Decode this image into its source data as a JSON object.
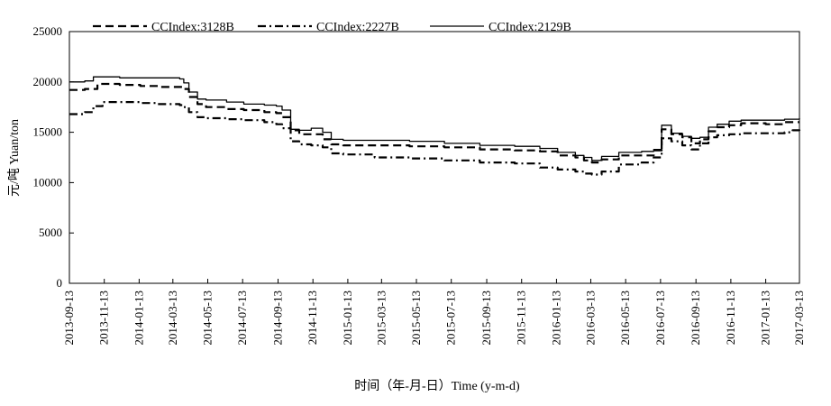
{
  "chart_data": {
    "type": "line",
    "title": "",
    "xlabel": "时间（年-月-日）Time (y-m-d)",
    "ylabel": "元/吨 Yuan/ton",
    "ylim": [
      0,
      25000
    ],
    "yticks": [
      0,
      5000,
      10000,
      15000,
      20000,
      25000
    ],
    "xlim": [
      "2013-09-13",
      "2017-03-13"
    ],
    "xtick_labels": [
      "2013-09-13",
      "2013-11-13",
      "2014-01-13",
      "2014-03-13",
      "2014-05-13",
      "2014-07-13",
      "2014-09-13",
      "2014-11-13",
      "2015-01-13",
      "2015-03-13",
      "2015-05-13",
      "2015-07-13",
      "2015-09-13",
      "2015-11-13",
      "2016-01-13",
      "2016-03-13",
      "2016-05-13",
      "2016-07-13",
      "2016-09-13",
      "2016-11-13",
      "2017-01-13",
      "2017-03-13"
    ],
    "grid": false,
    "legend_position": "top",
    "series": [
      {
        "name": "CCIndex:3128B",
        "style": "dashed",
        "x": [
          "2013-09-13",
          "2013-10-10",
          "2013-11-01",
          "2013-12-10",
          "2014-01-15",
          "2014-02-15",
          "2014-03-25",
          "2014-04-01",
          "2014-04-10",
          "2014-04-25",
          "2014-05-10",
          "2014-06-15",
          "2014-07-15",
          "2014-08-20",
          "2014-09-10",
          "2014-09-20",
          "2014-10-05",
          "2014-10-20",
          "2014-11-10",
          "2014-11-30",
          "2014-12-15",
          "2015-01-05",
          "2015-03-01",
          "2015-05-01",
          "2015-07-01",
          "2015-09-01",
          "2015-11-01",
          "2015-12-15",
          "2016-01-15",
          "2016-02-15",
          "2016-03-01",
          "2016-03-15",
          "2016-04-01",
          "2016-05-01",
          "2016-06-10",
          "2016-07-01",
          "2016-07-15",
          "2016-08-01",
          "2016-08-20",
          "2016-09-05",
          "2016-09-20",
          "2016-10-05",
          "2016-10-20",
          "2016-11-10",
          "2016-12-01",
          "2017-01-13",
          "2017-02-15",
          "2017-03-13"
        ],
        "y": [
          19200,
          19300,
          19800,
          19700,
          19600,
          19500,
          19500,
          19300,
          18500,
          17800,
          17500,
          17300,
          17200,
          17000,
          16900,
          16500,
          15200,
          14800,
          14800,
          14300,
          13800,
          13700,
          13700,
          13600,
          13500,
          13300,
          13200,
          13100,
          12700,
          12500,
          12200,
          12000,
          12300,
          12700,
          12700,
          13200,
          15300,
          14800,
          14500,
          13900,
          14300,
          15100,
          15500,
          15700,
          15900,
          15800,
          16000,
          16000
        ]
      },
      {
        "name": "CCIndex:2227B",
        "style": "dashdot",
        "x": [
          "2013-09-13",
          "2013-10-10",
          "2013-10-25",
          "2013-11-10",
          "2013-12-10",
          "2014-01-15",
          "2014-02-15",
          "2014-03-25",
          "2014-04-01",
          "2014-04-10",
          "2014-04-25",
          "2014-05-10",
          "2014-06-15",
          "2014-07-15",
          "2014-08-20",
          "2014-09-10",
          "2014-09-20",
          "2014-10-05",
          "2014-10-20",
          "2014-11-10",
          "2014-11-30",
          "2014-12-15",
          "2015-01-05",
          "2015-03-01",
          "2015-05-01",
          "2015-07-01",
          "2015-09-01",
          "2015-11-01",
          "2015-12-15",
          "2016-01-15",
          "2016-02-15",
          "2016-03-01",
          "2016-03-15",
          "2016-04-01",
          "2016-05-01",
          "2016-06-10",
          "2016-07-01",
          "2016-07-15",
          "2016-08-01",
          "2016-08-20",
          "2016-09-05",
          "2016-09-20",
          "2016-10-05",
          "2016-10-20",
          "2016-11-10",
          "2016-12-01",
          "2017-01-13",
          "2017-02-15",
          "2017-03-01",
          "2017-03-13"
        ],
        "y": [
          16800,
          17000,
          17600,
          18000,
          18000,
          17900,
          17800,
          17700,
          17500,
          17000,
          16500,
          16400,
          16300,
          16200,
          16000,
          15800,
          15400,
          14100,
          13800,
          13700,
          13500,
          12900,
          12800,
          12500,
          12400,
          12200,
          12000,
          11900,
          11500,
          11300,
          11100,
          10900,
          10800,
          11100,
          11800,
          12000,
          12500,
          14400,
          14100,
          13700,
          13300,
          13900,
          14500,
          14700,
          14800,
          14900,
          14900,
          15000,
          15200,
          14900
        ]
      },
      {
        "name": "CCIndex:2129B",
        "style": "solid",
        "x": [
          "2013-09-13",
          "2013-10-10",
          "2013-10-25",
          "2013-11-15",
          "2013-12-10",
          "2014-01-15",
          "2014-02-15",
          "2014-03-25",
          "2014-04-01",
          "2014-04-10",
          "2014-04-25",
          "2014-05-10",
          "2014-06-15",
          "2014-07-15",
          "2014-08-20",
          "2014-09-10",
          "2014-09-20",
          "2014-10-05",
          "2014-10-20",
          "2014-11-10",
          "2014-11-30",
          "2014-12-15",
          "2015-01-05",
          "2015-03-01",
          "2015-05-01",
          "2015-07-01",
          "2015-09-01",
          "2015-11-01",
          "2015-12-15",
          "2016-01-15",
          "2016-02-15",
          "2016-03-01",
          "2016-03-15",
          "2016-04-01",
          "2016-05-01",
          "2016-06-10",
          "2016-07-01",
          "2016-07-15",
          "2016-08-01",
          "2016-08-20",
          "2016-09-05",
          "2016-09-20",
          "2016-10-05",
          "2016-10-20",
          "2016-11-10",
          "2016-12-01",
          "2017-01-13",
          "2017-02-15",
          "2017-03-13"
        ],
        "y": [
          20000,
          20100,
          20500,
          20500,
          20400,
          20400,
          20400,
          20300,
          19900,
          19000,
          18300,
          18200,
          18000,
          17800,
          17700,
          17600,
          17200,
          15300,
          15200,
          15400,
          15000,
          14300,
          14200,
          14200,
          14100,
          13900,
          13700,
          13600,
          13400,
          13000,
          12700,
          12500,
          12200,
          12600,
          13000,
          13100,
          13300,
          15700,
          14900,
          14600,
          14400,
          14500,
          15500,
          15800,
          16100,
          16200,
          16200,
          16300,
          16400
        ]
      }
    ]
  }
}
